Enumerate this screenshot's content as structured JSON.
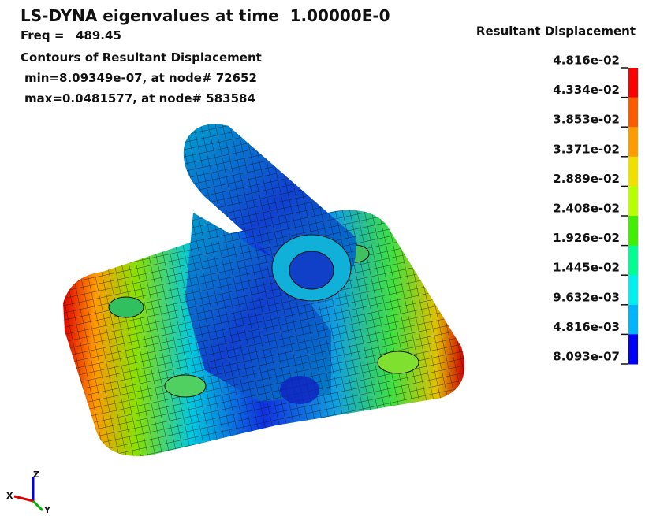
{
  "header": {
    "title": "LS-DYNA eigenvalues at time  1.00000E-0",
    "freq_label": "Freq =",
    "freq_value": "489.45",
    "contour": "Contours of Resultant Displacement",
    "min": "min=8.09349e-07, at node# 72652",
    "max": "max=0.0481577, at node# 583584"
  },
  "legend": {
    "title": "Resultant Displacement",
    "labels": [
      "4.816e-02",
      "4.334e-02",
      "3.853e-02",
      "3.371e-02",
      "2.889e-02",
      "2.408e-02",
      "1.926e-02",
      "1.445e-02",
      "9.632e-03",
      "4.816e-03",
      "8.093e-07"
    ],
    "colors": [
      "#ff0000",
      "#ff5a00",
      "#ff9a00",
      "#f0e000",
      "#b8ff00",
      "#40f000",
      "#00ff90",
      "#00f0f0",
      "#00b4ff",
      "#0000ff"
    ]
  },
  "triad": {
    "z": "Z",
    "x": "X",
    "y": "Y"
  }
}
